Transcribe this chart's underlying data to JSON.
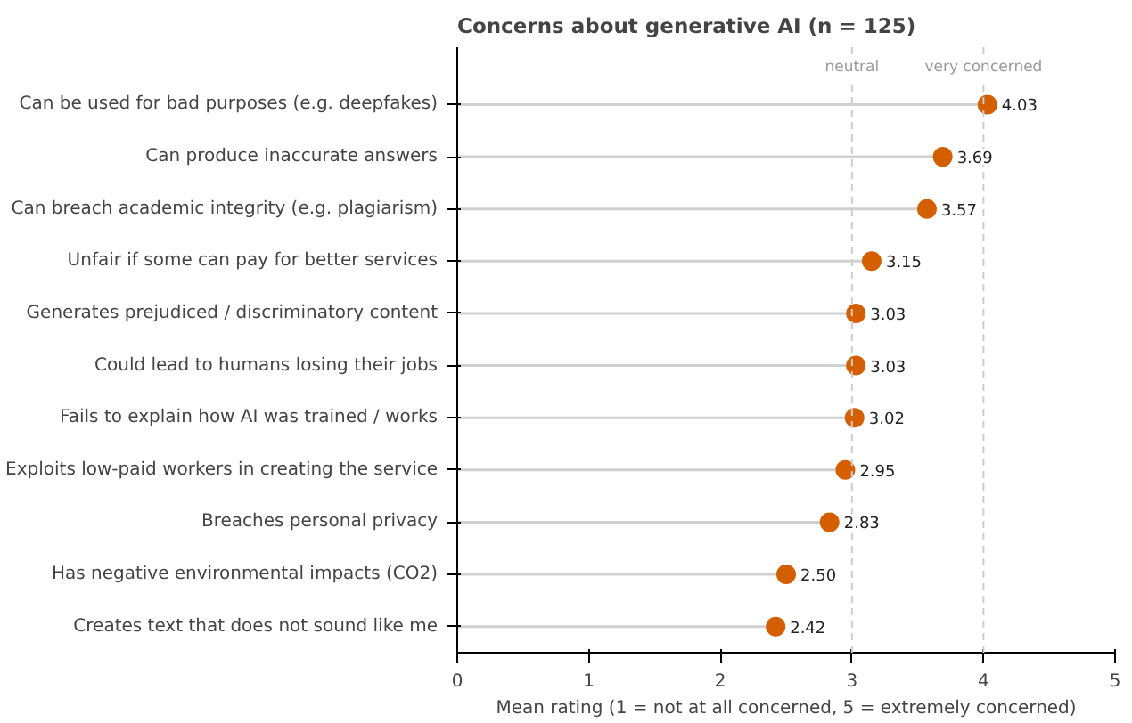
{
  "chart_data": {
    "type": "lollipop",
    "orientation": "horizontal",
    "title": "Concerns about generative AI (n = 125)",
    "xlabel": "Mean rating (1 = not at all concerned, 5 = extremely concerned)",
    "categories": [
      "Can be used for bad purposes (e.g. deepfakes)",
      "Can produce inaccurate answers",
      "Can breach academic integrity (e.g. plagiarism)",
      "Unfair if some can pay for better services",
      "Generates prejudiced / discriminatory content",
      "Could lead to humans losing their jobs",
      "Fails to explain how AI was trained / works",
      "Exploits low-paid workers in creating the service",
      "Breaches personal privacy",
      "Has negative environmental impacts (CO2)",
      "Creates text that does not sound like me"
    ],
    "values": [
      4.03,
      3.69,
      3.57,
      3.15,
      3.03,
      3.03,
      3.02,
      2.95,
      2.83,
      2.5,
      2.42
    ],
    "color": "#d45f00",
    "data_labels": true,
    "value_labels": [
      "4.03",
      "3.69",
      "3.57",
      "3.15",
      "3.03",
      "3.03",
      "3.02",
      "2.95",
      "2.83",
      "2.50",
      "2.42"
    ],
    "xlim": [
      0,
      5
    ],
    "xticks": [
      0,
      1,
      2,
      3,
      4,
      5
    ],
    "grid": false,
    "marker": "circle",
    "ref_lines": [
      {
        "axis": "x",
        "value": 3,
        "label": "neutral",
        "color": "#cccccc",
        "line_style": "dashed"
      },
      {
        "axis": "x",
        "value": 4,
        "label": "very concerned",
        "color": "#cccccc",
        "line_style": "dashed"
      }
    ]
  }
}
